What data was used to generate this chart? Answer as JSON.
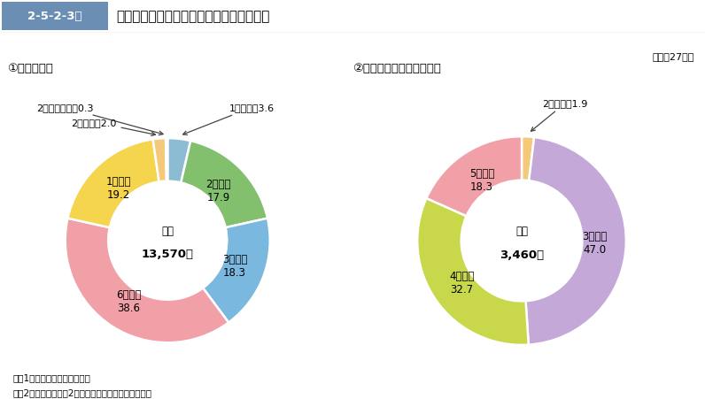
{
  "title_box": "2-5-2-3図",
  "title_main": "保護観察開始人員の保護観察期間別構成比",
  "year_label": "（平成27年）",
  "chart1_title": "①　仮釈放者",
  "chart2_title": "②　保護観察付執行猶予者",
  "chart1_center_label": "総数",
  "chart1_center_value": "13,570人",
  "chart2_center_label": "総数",
  "chart2_center_value": "3,460人",
  "chart1_slices": [
    {
      "label": "1月以内",
      "value": 3.6,
      "color": "#8BBCD4"
    },
    {
      "label": "2月以内",
      "value": 17.9,
      "color": "#82C06E"
    },
    {
      "label": "3月以内",
      "value": 18.3,
      "color": "#7BB8E0"
    },
    {
      "label": "6月以内",
      "value": 38.6,
      "color": "#F2A0A8"
    },
    {
      "label": "1年以内",
      "value": 19.2,
      "color": "#F5D44E"
    },
    {
      "label": "2年以内",
      "value": 2.0,
      "color": "#F5C97A"
    },
    {
      "label": "2年を超える",
      "value": 0.3,
      "color": "#D4A8C4"
    }
  ],
  "chart2_slices": [
    {
      "label": "2年以内",
      "value": 1.9,
      "color": "#F5C97A"
    },
    {
      "label": "3年以内",
      "value": 47.0,
      "color": "#C4A8D8"
    },
    {
      "label": "4年以内",
      "value": 32.7,
      "color": "#C8D84A"
    },
    {
      "label": "5年以内",
      "value": 18.3,
      "color": "#F2A0A8"
    }
  ],
  "note1": "注　1　保護統計年報による。",
  "note2": "　　2　仮釈放者の「2年を超える」は，無期を含む。",
  "bg_color": "#FFFFFF",
  "header_bg": "#6B8EB5",
  "header_text_color": "#FFFFFF",
  "separator_color": "#CCCCCC"
}
